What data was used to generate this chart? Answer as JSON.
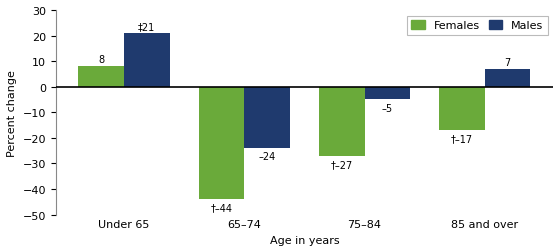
{
  "categories": [
    "Under 65",
    "65–74",
    "75–84",
    "85 and over"
  ],
  "females": [
    8,
    -44,
    -27,
    -17
  ],
  "males": [
    21,
    -24,
    -5,
    7
  ],
  "female_labels": [
    "8",
    "†–44",
    "†–27",
    "†–17"
  ],
  "male_labels": [
    "‡21",
    "–24",
    "–5",
    "7"
  ],
  "female_color": "#6aaa3a",
  "male_color": "#1f3a6e",
  "ylabel": "Percent change",
  "xlabel": "Age in years",
  "ylim": [
    -50,
    30
  ],
  "yticks": [
    -50,
    -40,
    -30,
    -20,
    -10,
    0,
    10,
    20,
    30
  ],
  "legend_females": "Females",
  "legend_males": "Males",
  "bar_width": 0.38
}
